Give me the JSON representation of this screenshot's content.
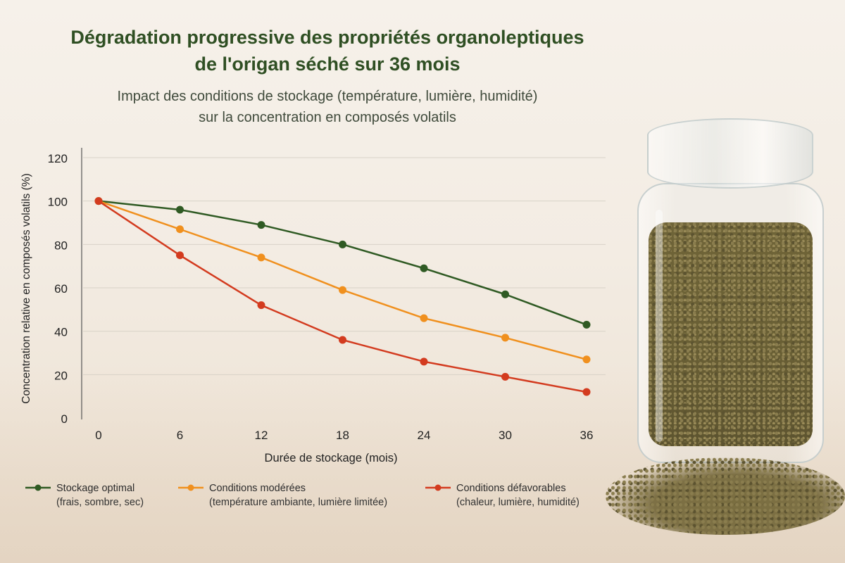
{
  "header": {
    "title_line1": "Dégradation progressive des propriétés organoleptiques",
    "title_line2": "de l'origan séché sur 36 mois",
    "subtitle_line1": "Impact des conditions de stockage (température, lumière, humidité)",
    "subtitle_line2": "sur la concentration en composés volatils"
  },
  "chart_data": {
    "type": "line",
    "xlabel": "Durée de stockage (mois)",
    "ylabel": "Concentration relative en composés volatils (%)",
    "x": [
      0,
      6,
      12,
      18,
      24,
      30,
      36
    ],
    "xlim": [
      0,
      36
    ],
    "ylim": [
      0,
      120
    ],
    "yticks": [
      0,
      20,
      40,
      60,
      80,
      100,
      120
    ],
    "grid": true,
    "legend_position": "bottom",
    "series": [
      {
        "name": "Stockage optimal",
        "note": "(frais, sombre, sec)",
        "color": "#2f5a23",
        "values": [
          100,
          96,
          89,
          80,
          69,
          57,
          43
        ]
      },
      {
        "name": "Conditions modérées",
        "note": "(température ambiante, lumière limitée)",
        "color": "#f0901e",
        "values": [
          100,
          87,
          74,
          59,
          46,
          37,
          27
        ]
      },
      {
        "name": "Conditions défavorables",
        "note": "(chaleur, lumière, humidité)",
        "color": "#d33b1f",
        "values": [
          100,
          75,
          52,
          36,
          26,
          19,
          12
        ]
      }
    ]
  }
}
